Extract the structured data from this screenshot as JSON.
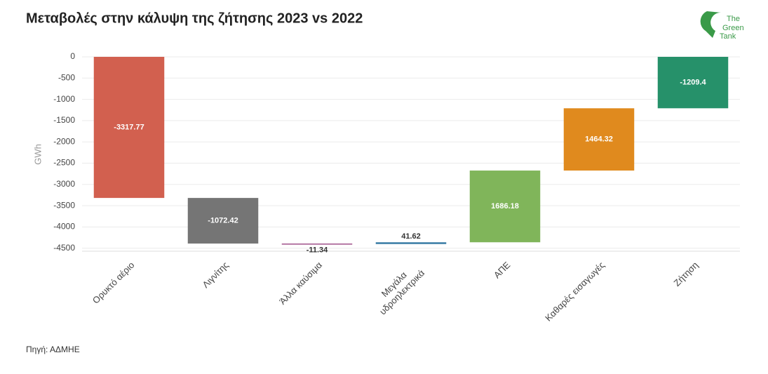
{
  "chart_data": {
    "type": "waterfall",
    "title": "Μεταβολές στην κάλυψη της ζήτησης 2023 vs 2022",
    "y_label": "GWh",
    "categories": [
      "Ορυκτό αέριο",
      "Λιγνίτης",
      "Άλλα καύσιμα",
      "Μεγάλα\nυδροηλεκτρικά",
      "ΑΠΕ",
      "Καθαρές εισαγωγές",
      "Ζήτηση"
    ],
    "values": [
      -3317.77,
      -1072.42,
      -11.34,
      41.62,
      1686.18,
      1464.32,
      -1209.4
    ],
    "measure": [
      "relative",
      "relative",
      "relative",
      "relative",
      "relative",
      "relative",
      "total"
    ],
    "colors": [
      "#d2604f",
      "#757575",
      "#a0508a",
      "#3a7ca5",
      "#80b55a",
      "#e08a1e",
      "#26916a"
    ],
    "ylim": [
      -4570,
      0
    ],
    "yticks": [
      0,
      -500,
      -1000,
      -1500,
      -2000,
      -2500,
      -3000,
      -3500,
      -4000,
      -4500
    ],
    "grid": true
  },
  "source": "Πηγή: ΑΔΜΗΕ",
  "logo": [
    "The",
    "Green",
    "Tank"
  ]
}
